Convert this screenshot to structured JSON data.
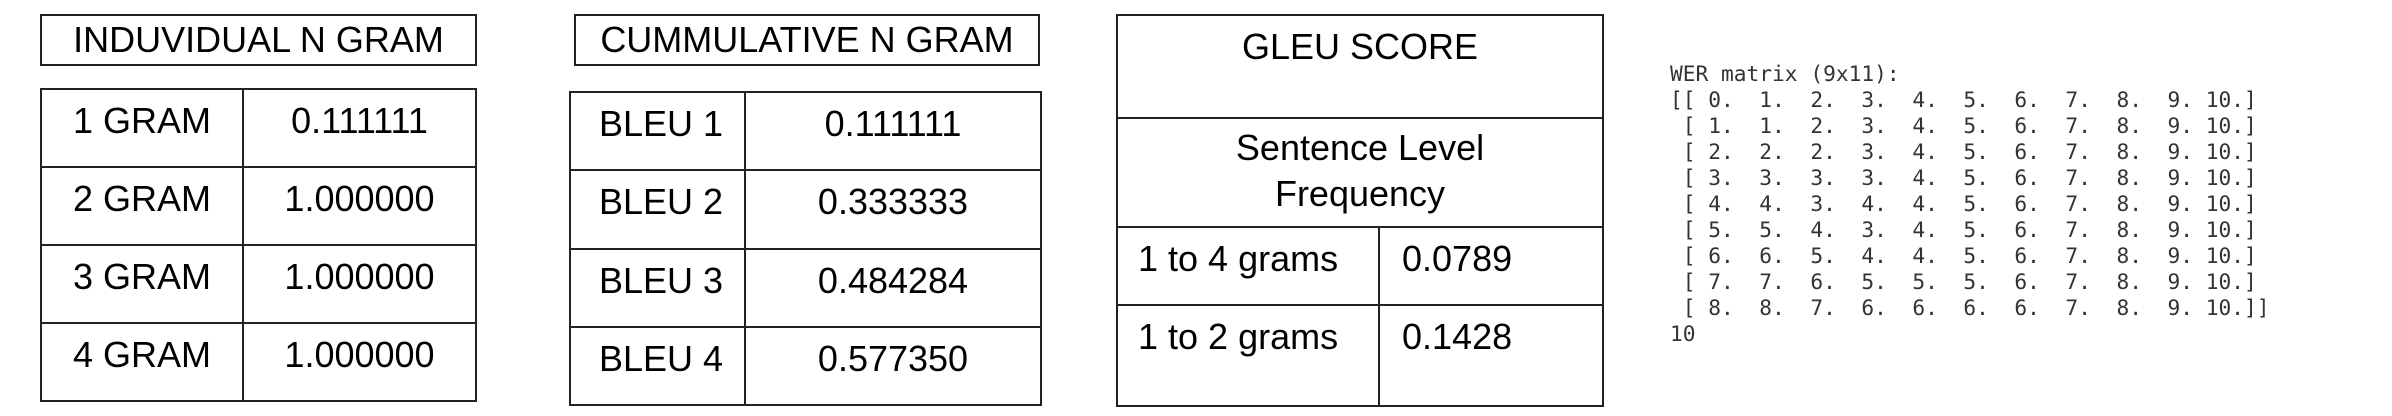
{
  "individual": {
    "title": "INDUVIDUAL N GRAM",
    "rows": [
      {
        "label": "1 GRAM",
        "value": "0.111111"
      },
      {
        "label": "2 GRAM",
        "value": "1.000000"
      },
      {
        "label": "3 GRAM",
        "value": "1.000000"
      },
      {
        "label": "4 GRAM",
        "value": "1.000000"
      }
    ]
  },
  "cumulative": {
    "title": "CUMMULATIVE N GRAM",
    "rows": [
      {
        "label": "BLEU 1",
        "value": "0.111111"
      },
      {
        "label": "BLEU 2",
        "value": "0.333333"
      },
      {
        "label": "BLEU 3",
        "value": "0.484284"
      },
      {
        "label": "BLEU 4",
        "value": "0.577350"
      }
    ]
  },
  "gleu": {
    "title": "GLEU SCORE",
    "subtitle_line1": "Sentence Level",
    "subtitle_line2": "Frequency",
    "rows": [
      {
        "label": "1 to 4 grams",
        "value": "0.0789"
      },
      {
        "label": "1 to 2 grams",
        "value": "0.1428"
      }
    ]
  },
  "wer": {
    "header": "WER matrix (9x11):",
    "lines": [
      "[[ 0.  1.  2.  3.  4.  5.  6.  7.  8.  9. 10.]",
      " [ 1.  1.  2.  3.  4.  5.  6.  7.  8.  9. 10.]",
      " [ 2.  2.  2.  3.  4.  5.  6.  7.  8.  9. 10.]",
      " [ 3.  3.  3.  3.  4.  5.  6.  7.  8.  9. 10.]",
      " [ 4.  4.  3.  4.  4.  5.  6.  7.  8.  9. 10.]",
      " [ 5.  5.  4.  3.  4.  5.  6.  7.  8.  9. 10.]",
      " [ 6.  6.  5.  4.  4.  5.  6.  7.  8.  9. 10.]",
      " [ 7.  7.  6.  5.  5.  5.  6.  7.  8.  9. 10.]",
      " [ 8.  8.  7.  6.  6.  6.  6.  7.  8.  9. 10.]]"
    ],
    "result": "10"
  }
}
